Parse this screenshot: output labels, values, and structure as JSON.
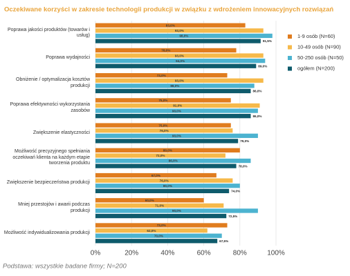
{
  "chart_data": {
    "type": "bar",
    "orientation": "horizontal",
    "title": "Oczekiwane korzyści w zakresie technologii produkcji w związku z wdrożeniem innowacyjnych rozwiązań",
    "footnote": "Podstawa: wszystkie badane firmy; N=200",
    "categories": [
      "Poprawa jakości produktów (towarów i usług)",
      "Poprawa wydajności",
      "Obniżenie / optymalizacja kosztów produkcji",
      "Poprawa efektywności wykorzystania zasobów",
      "Zwiększenie elastyczności",
      "Możliwość precyzyjnego spełniania oczekiwań klienta na każdym etapie tworzenia produktu",
      "Zwiększenie bezpieczeństwa produkcji",
      "Mniej przestojów i awarii podczas produkcji",
      "Możliwość indywidualizowania produkcji"
    ],
    "series": [
      {
        "name": "1-9 osób (N=60)",
        "color": "#e07c1e",
        "values": [
          83,
          78,
          73,
          75,
          75,
          80,
          67,
          60,
          73
        ],
        "value_labels": [
          "83,0%",
          "78,0%",
          "73,0%",
          "75,0%",
          "75,0%",
          "80,0%",
          "67,0%",
          "60,0%",
          "73,0%"
        ]
      },
      {
        "name": "10-49 osób (N=90)",
        "color": "#f6b94a",
        "values": [
          93,
          93,
          93,
          91,
          76,
          72,
          76,
          71,
          62
        ],
        "value_labels": [
          "93,0%",
          "93,0%",
          "93,0%",
          "91,0%",
          "76,0%",
          "72,0%",
          "76,0%",
          "71,0%",
          "62,0%"
        ]
      },
      {
        "name": "50-250 osób (N=50)",
        "color": "#4cb3d0",
        "values": [
          98,
          94,
          88,
          90,
          90,
          86,
          80,
          90,
          70
        ],
        "value_labels": [
          "98,0%",
          "94,0%",
          "88,0%",
          "90,0%",
          "90,0%",
          "86,0%",
          "80,0%",
          "90,0%",
          "70,0%"
        ]
      },
      {
        "name": "ogółem (N=200)",
        "color": "#0e5b6c",
        "values": [
          91.5,
          89,
          86,
          86,
          79,
          78,
          74,
          72.5,
          67.5
        ],
        "value_labels": [
          "91,5%",
          "89,0%",
          "86,0%",
          "86,0%",
          "79,0%",
          "78,0%",
          "74,0%",
          "72,5%",
          "67,5%"
        ]
      }
    ],
    "xlim": [
      0,
      100
    ],
    "xticks": [
      {
        "value": 0,
        "label": "0%"
      },
      {
        "value": 20,
        "label": "20%"
      },
      {
        "value": 40,
        "label": "40%"
      },
      {
        "value": 60,
        "label": "60%"
      },
      {
        "value": 80,
        "label": "80%"
      },
      {
        "value": 100,
        "label": "100%"
      }
    ],
    "grid": true,
    "legend": "right"
  }
}
